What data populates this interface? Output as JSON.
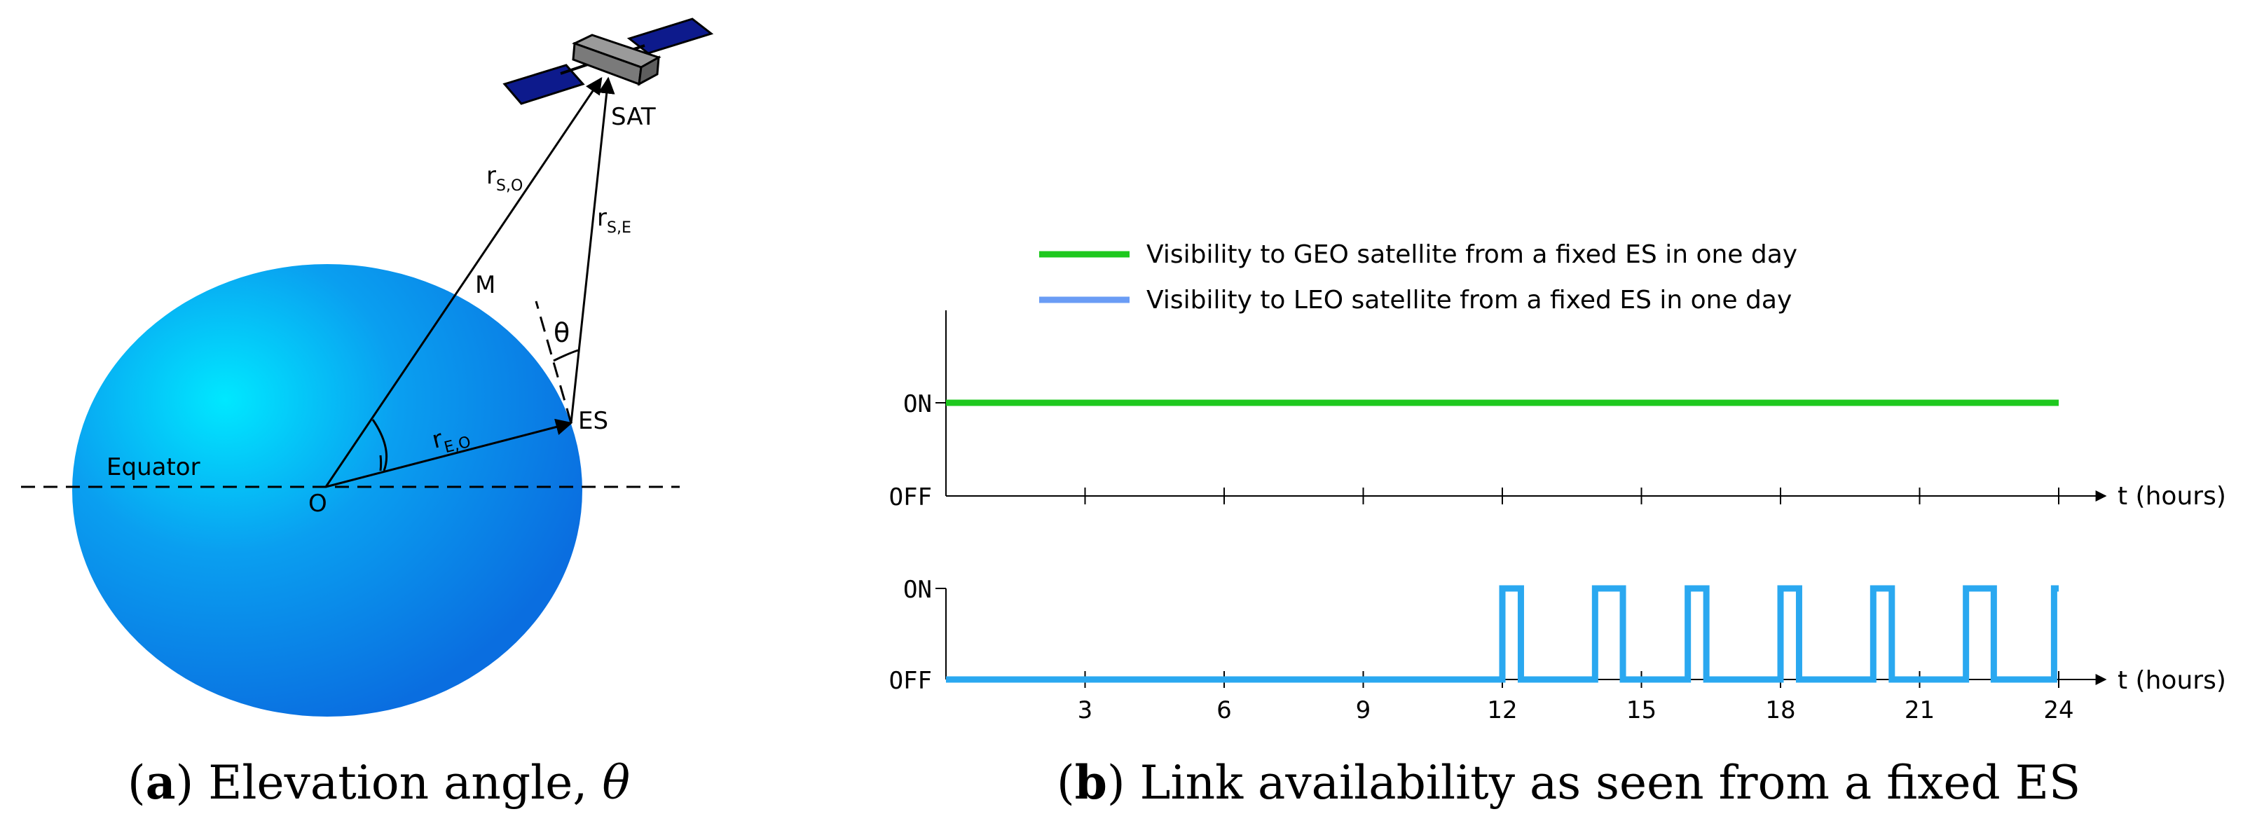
{
  "panel_a": {
    "labels": {
      "sat": "SAT",
      "r_so": "r",
      "r_so_sub": "S,O",
      "r_se": "r",
      "r_se_sub": "S,E",
      "m": "M",
      "theta": "θ",
      "es": "ES",
      "r_eo": "r",
      "r_eo_sub": "E,O",
      "equator": "Equator",
      "o": "O"
    },
    "caption_letter": "a",
    "caption_text": ") Elevation angle, ",
    "caption_theta": "θ",
    "colors": {
      "earth_light": "#00e8ff",
      "earth_dark": "#0a6ee0",
      "panel": "#0d1a8c",
      "body": "#8a8a8a"
    }
  },
  "panel_b": {
    "legend": [
      {
        "label": "Visibility to GEO satellite from a fixed ES in one day",
        "color": "#1ec81e"
      },
      {
        "label": "Visibility to LEO satellite from a fixed ES in one day",
        "color": "#6a9cf5"
      }
    ],
    "caption_letter": "b",
    "caption_text": ") Link availability as seen from a fixed ES",
    "chart_data": [
      {
        "type": "line",
        "series": [
          {
            "color": "#1ec81e",
            "x": [
              0,
              24
            ],
            "y": [
              1,
              1
            ]
          }
        ],
        "y_ticks": [
          "OFF",
          "ON"
        ],
        "x_ticks": [
          3,
          6,
          9,
          12,
          15,
          18,
          21,
          24
        ],
        "xlim": [
          0,
          24
        ],
        "xlabel": "t (hours)",
        "show_x_tick_labels": false
      },
      {
        "type": "line",
        "series": [
          {
            "color": "#2aa8f0",
            "on_intervals": [
              [
                12,
                12.4
              ],
              [
                14,
                14.6
              ],
              [
                16,
                16.4
              ],
              [
                18,
                18.4
              ],
              [
                20,
                20.4
              ],
              [
                22,
                22.6
              ],
              [
                23.9,
                24
              ]
            ]
          }
        ],
        "y_ticks": [
          "OFF",
          "ON"
        ],
        "x_ticks": [
          3,
          6,
          9,
          12,
          15,
          18,
          21,
          24
        ],
        "xlim": [
          0,
          24
        ],
        "xlabel": "t (hours)",
        "show_x_tick_labels": true
      }
    ]
  }
}
